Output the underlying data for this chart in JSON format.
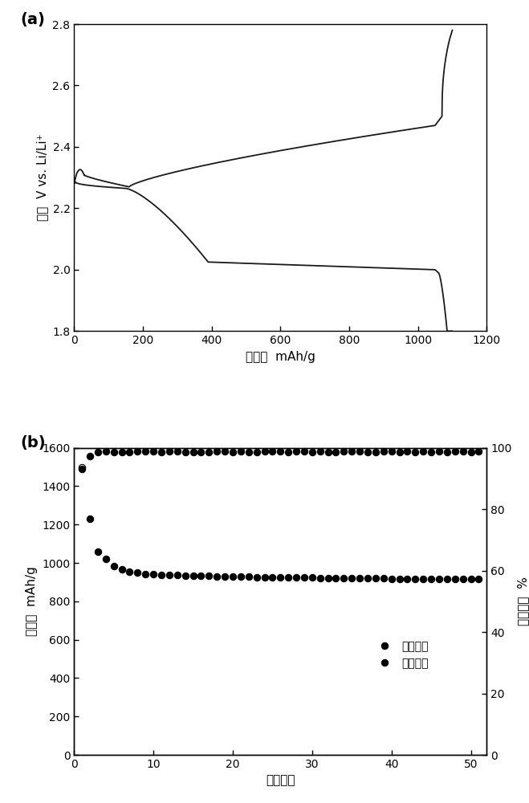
{
  "panel_a": {
    "xlabel": "比容量  mAh/g",
    "ylabel": "电势  V vs. Li/Li⁺",
    "xlim": [
      0,
      1200
    ],
    "ylim": [
      1.8,
      2.8
    ],
    "xticks": [
      0,
      200,
      400,
      600,
      800,
      1000,
      1200
    ],
    "yticks": [
      1.8,
      2.0,
      2.2,
      2.4,
      2.6,
      2.8
    ],
    "label": "(a)"
  },
  "panel_b": {
    "xlabel": "循环次数",
    "ylabel_left": "比容量  mAh/g",
    "ylabel_right": "库伦效率  %",
    "xlim": [
      0,
      52
    ],
    "ylim_left": [
      0,
      1600
    ],
    "ylim_right": [
      0,
      100
    ],
    "xticks": [
      0,
      10,
      20,
      30,
      40,
      50
    ],
    "yticks_left": [
      0,
      200,
      400,
      600,
      800,
      1000,
      1200,
      1400,
      1600
    ],
    "yticks_right": [
      0,
      20,
      40,
      60,
      80,
      100
    ],
    "legend_coulomb": "库伦效率",
    "legend_discharge": "放电容量",
    "label": "(b)"
  },
  "line_color": "#1a1a1a",
  "bg_color": "#ffffff"
}
